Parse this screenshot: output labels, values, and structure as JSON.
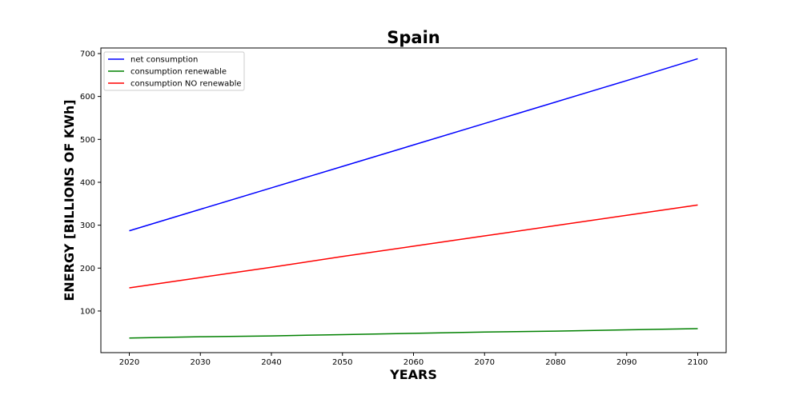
{
  "chart_data": {
    "type": "line",
    "title": "Spain",
    "xlabel": "YEARS",
    "ylabel": "ENERGY [BILLIONS OF KWh]",
    "x": [
      2020,
      2030,
      2040,
      2050,
      2060,
      2070,
      2080,
      2090,
      2100
    ],
    "xlim": [
      2016,
      2104
    ],
    "ylim": [
      3,
      713
    ],
    "xticks": [
      2020,
      2030,
      2040,
      2050,
      2060,
      2070,
      2080,
      2090,
      2100
    ],
    "yticks": [
      100,
      200,
      300,
      400,
      500,
      600,
      700
    ],
    "grid": false,
    "legend_position": "top-left",
    "series": [
      {
        "name": "net consumption",
        "color": "#0000ff",
        "values": [
          287,
          337,
          387,
          437,
          487,
          537,
          587,
          637,
          688
        ]
      },
      {
        "name": "consumption renewable",
        "color": "#008000",
        "values": [
          37,
          40,
          42,
          45,
          48,
          51,
          53,
          56,
          59
        ]
      },
      {
        "name": "consumption NO renewable",
        "color": "#ff0000",
        "values": [
          154,
          178,
          202,
          227,
          251,
          275,
          299,
          323,
          347
        ]
      }
    ]
  }
}
